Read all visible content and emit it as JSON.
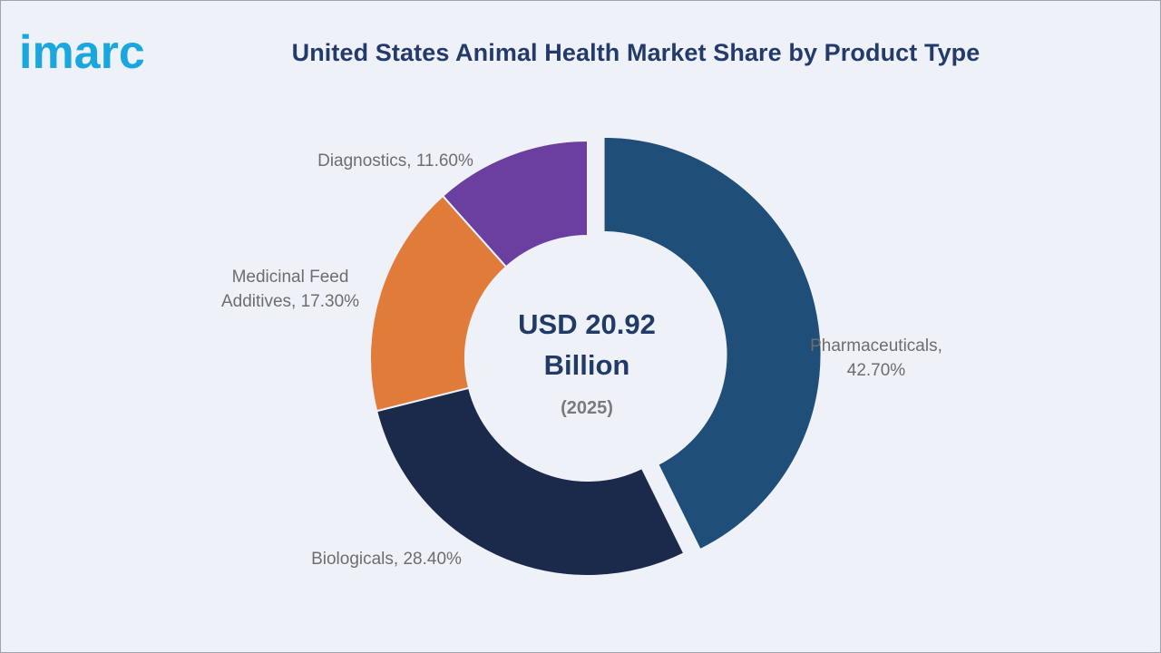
{
  "brand": {
    "logo_text": "imarc",
    "logo_color": "#1aa6df"
  },
  "chart_data": {
    "type": "pie",
    "donut": true,
    "title": "United States Animal Health Market Share by Product Type",
    "center_label": {
      "line1": "USD 20.92",
      "line2": "Billion",
      "line3": "(2025)"
    },
    "unit": "%",
    "slices": [
      {
        "name": "Pharmaceuticals",
        "value": 42.7,
        "label_line1": "Pharmaceuticals,",
        "label_line2": "42.70%",
        "color": "#1f4e79",
        "exploded": true
      },
      {
        "name": "Biologicals",
        "value": 28.4,
        "label_line1": "Biologicals, 28.40%",
        "label_line2": "",
        "color": "#1b2a4a",
        "exploded": false
      },
      {
        "name": "Medicinal Feed Additives",
        "value": 17.3,
        "label_line1": "Medicinal Feed",
        "label_line2": "Additives, 17.30%",
        "color": "#e07b39",
        "exploded": false
      },
      {
        "name": "Diagnostics",
        "value": 11.6,
        "label_line1": "Diagnostics, 11.60%",
        "label_line2": "",
        "color": "#6b3fa0",
        "exploded": false
      }
    ]
  }
}
